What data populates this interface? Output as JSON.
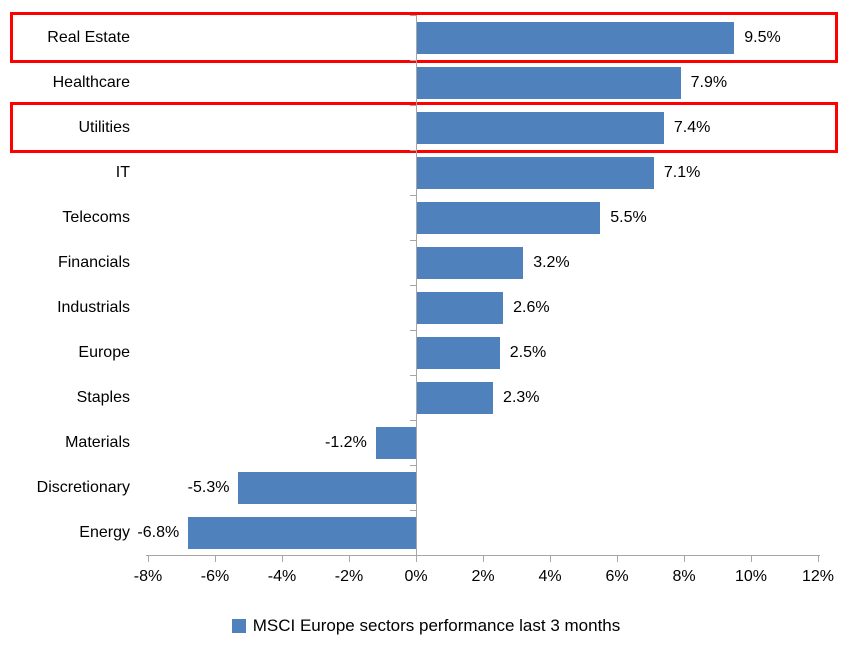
{
  "chart_data": {
    "type": "bar",
    "orientation": "horizontal",
    "title": "",
    "categories": [
      "Real Estate",
      "Healthcare",
      "Utilities",
      "IT",
      "Telecoms",
      "Financials",
      "Industrials",
      "Europe",
      "Staples",
      "Materials",
      "Discretionary",
      "Energy"
    ],
    "values": [
      9.5,
      7.9,
      7.4,
      7.1,
      5.5,
      3.2,
      2.6,
      2.5,
      2.3,
      -1.2,
      -5.3,
      -6.8
    ],
    "value_labels": [
      "9.5%",
      "7.9%",
      "7.4%",
      "7.1%",
      "5.5%",
      "3.2%",
      "2.6%",
      "2.5%",
      "2.3%",
      "-1.2%",
      "-5.3%",
      "-6.8%"
    ],
    "highlighted_categories": [
      "Real Estate",
      "Utilities"
    ],
    "x_axis": {
      "tick_values": [
        -8,
        -6,
        -4,
        -2,
        0,
        2,
        4,
        6,
        8,
        10,
        12
      ],
      "tick_labels": [
        "-8%",
        "-6%",
        "-4%",
        "-2%",
        "0%",
        "2%",
        "4%",
        "6%",
        "8%",
        "10%",
        "12%"
      ],
      "min": -8,
      "max": 12
    },
    "legend": {
      "label": "MSCI Europe sectors performance last 3 months",
      "position": "bottom"
    },
    "colors": {
      "bar": "#4f81bd",
      "highlight_border": "#ff0000",
      "axis": "#a6a6a6",
      "text": "#000000"
    },
    "grid": false
  }
}
